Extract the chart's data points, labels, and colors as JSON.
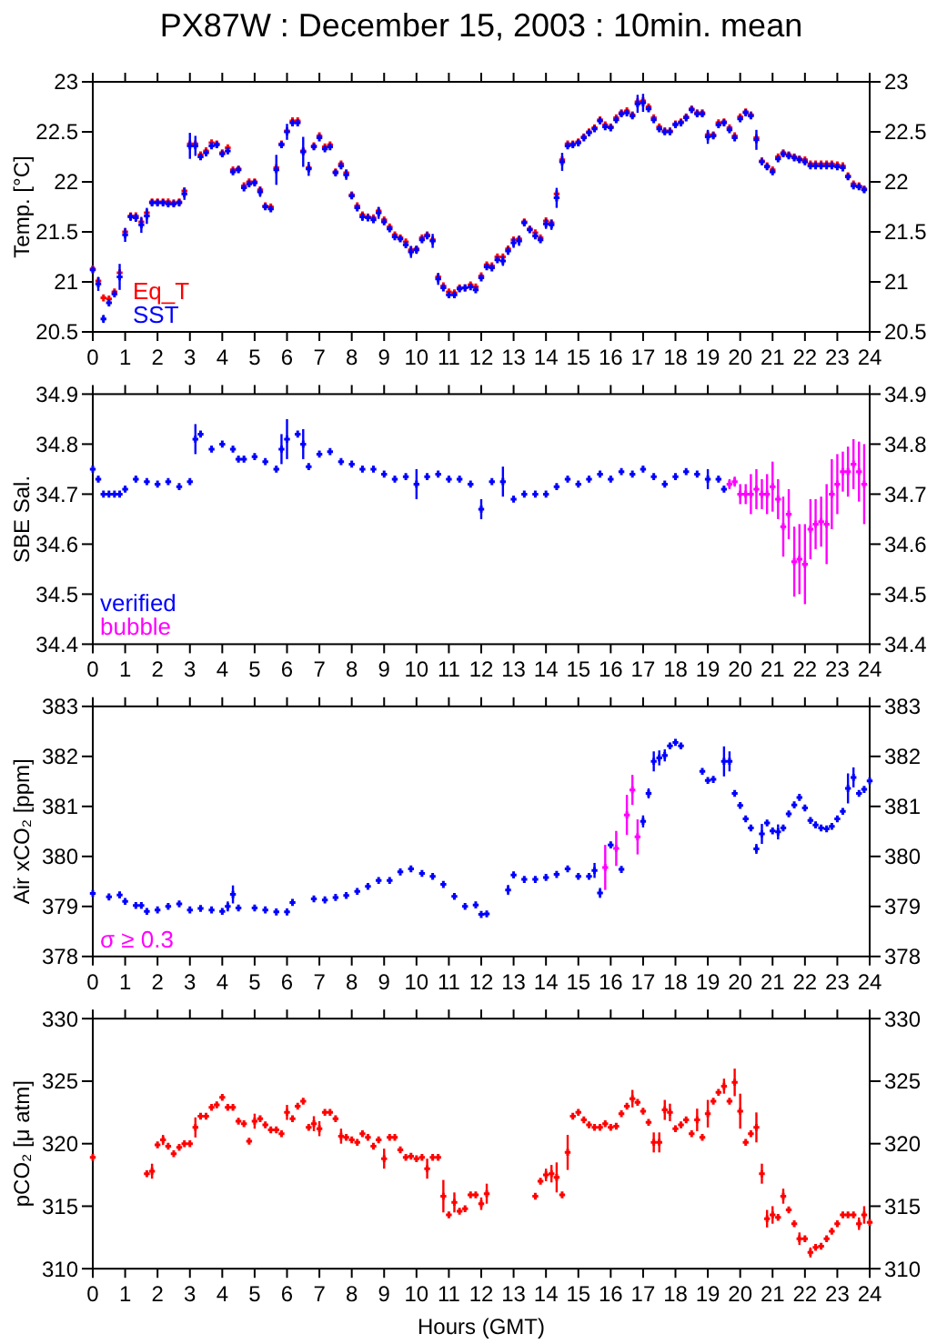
{
  "chart_data": [
    {
      "type": "scatter",
      "title": "PX87W : December 15, 2003 : 10min. mean",
      "ylabel": "Temp. [°C]",
      "xlim": [
        0,
        24
      ],
      "xticks": [
        0,
        1,
        2,
        3,
        4,
        5,
        6,
        7,
        8,
        9,
        10,
        11,
        12,
        13,
        14,
        15,
        16,
        17,
        18,
        19,
        20,
        21,
        22,
        23,
        24
      ],
      "ylim": [
        20.5,
        23
      ],
      "yticks": [
        20.5,
        21,
        21.5,
        22,
        22.5,
        23
      ],
      "y2lim": [
        20.5,
        23
      ],
      "y2ticks": [
        20.5,
        21,
        21.5,
        22,
        22.5,
        23
      ],
      "marker": "cross",
      "x": [
        0,
        0.17,
        0.33,
        0.5,
        0.67,
        0.83,
        1,
        1.17,
        1.33,
        1.5,
        1.67,
        1.83,
        2,
        2.17,
        2.33,
        2.5,
        2.67,
        2.83,
        3,
        3.17,
        3.33,
        3.5,
        3.67,
        3.83,
        4,
        4.17,
        4.33,
        4.5,
        4.67,
        4.83,
        5,
        5.17,
        5.33,
        5.5,
        5.67,
        5.83,
        6,
        6.17,
        6.33,
        6.5,
        6.67,
        6.83,
        7,
        7.17,
        7.33,
        7.5,
        7.67,
        7.83,
        8,
        8.17,
        8.33,
        8.5,
        8.67,
        8.83,
        9,
        9.17,
        9.33,
        9.5,
        9.67,
        9.83,
        10,
        10.17,
        10.33,
        10.5,
        10.67,
        10.83,
        11,
        11.17,
        11.33,
        11.5,
        11.67,
        11.83,
        12,
        12.17,
        12.33,
        12.5,
        12.67,
        12.83,
        13,
        13.17,
        13.33,
        13.5,
        13.67,
        13.83,
        14,
        14.17,
        14.33,
        14.5,
        14.67,
        14.83,
        15,
        15.17,
        15.33,
        15.5,
        15.67,
        15.83,
        16,
        16.17,
        16.33,
        16.5,
        16.67,
        16.83,
        17,
        17.17,
        17.33,
        17.5,
        17.67,
        17.83,
        18,
        18.17,
        18.33,
        18.5,
        18.67,
        18.83,
        19,
        19.17,
        19.33,
        19.5,
        19.67,
        19.83,
        20,
        20.17,
        20.33,
        20.5,
        20.67,
        20.83,
        21,
        21.17,
        21.33,
        21.5,
        21.67,
        21.83,
        22,
        22.17,
        22.33,
        22.5,
        22.67,
        22.83,
        23,
        23.17,
        23.33,
        23.5,
        23.67,
        23.83
      ],
      "series": [
        {
          "name": "Eq_T",
          "color": "#ff0000",
          "values": [
            21.13,
            21.01,
            20.84,
            20.83,
            20.9,
            21.09,
            21.5,
            21.66,
            21.66,
            21.6,
            21.69,
            21.8,
            21.8,
            21.8,
            21.8,
            21.79,
            21.8,
            21.91,
            22.38,
            22.38,
            22.27,
            22.31,
            22.39,
            22.38,
            22.29,
            22.34,
            22.12,
            22.13,
            21.96,
            22.0,
            22.0,
            21.92,
            21.76,
            21.75,
            22.14,
            22.38,
            22.51,
            22.61,
            22.61,
            22.31,
            22.14,
            22.36,
            22.46,
            22.35,
            22.37,
            22.1,
            22.18,
            22.09,
            21.87,
            21.76,
            21.67,
            21.65,
            21.64,
            21.71,
            21.62,
            21.55,
            21.47,
            21.44,
            21.4,
            21.32,
            21.33,
            21.44,
            21.47,
            21.42,
            21.05,
            20.96,
            20.9,
            20.89,
            20.94,
            20.94,
            20.97,
            20.95,
            21.06,
            21.17,
            21.16,
            21.25,
            21.25,
            21.33,
            21.42,
            21.43,
            21.6,
            21.53,
            21.49,
            21.44,
            21.61,
            21.59,
            21.88,
            22.22,
            22.38,
            22.38,
            22.4,
            22.45,
            22.5,
            22.54,
            22.62,
            22.57,
            22.55,
            22.64,
            22.69,
            22.71,
            22.67,
            22.8,
            22.81,
            22.75,
            22.64,
            22.55,
            22.51,
            22.51,
            22.58,
            22.6,
            22.65,
            22.73,
            22.69,
            22.69,
            22.47,
            22.47,
            22.59,
            22.6,
            22.54,
            22.46,
            22.65,
            22.7,
            22.67,
            22.44,
            22.21,
            22.16,
            22.12,
            22.25,
            22.29,
            22.27,
            22.25,
            22.23,
            22.22,
            22.18,
            22.18,
            22.18,
            22.18,
            22.18,
            22.17,
            22.16,
            22.06,
            21.98,
            21.96,
            21.93
          ]
        },
        {
          "name": "SST",
          "color": "#0000ff",
          "values": [
            21.12,
            20.98,
            20.63,
            20.79,
            20.88,
            21.05,
            21.47,
            21.65,
            21.64,
            21.57,
            21.66,
            21.79,
            21.79,
            21.79,
            21.78,
            21.78,
            21.79,
            21.88,
            22.36,
            22.36,
            22.25,
            22.29,
            22.36,
            22.37,
            22.28,
            22.31,
            22.1,
            22.12,
            21.94,
            21.98,
            21.99,
            21.9,
            21.75,
            21.73,
            22.12,
            22.37,
            22.5,
            22.59,
            22.59,
            22.3,
            22.13,
            22.35,
            22.44,
            22.33,
            22.35,
            22.09,
            22.16,
            22.07,
            21.86,
            21.74,
            21.65,
            21.64,
            21.62,
            21.69,
            21.6,
            21.53,
            21.45,
            21.43,
            21.37,
            21.3,
            21.32,
            21.42,
            21.46,
            21.41,
            21.03,
            20.94,
            20.87,
            20.87,
            20.93,
            20.94,
            20.95,
            20.92,
            21.04,
            21.15,
            21.14,
            21.22,
            21.21,
            21.31,
            21.39,
            21.41,
            21.59,
            21.52,
            21.46,
            21.42,
            21.58,
            21.57,
            21.84,
            22.2,
            22.36,
            22.37,
            22.39,
            22.44,
            22.49,
            22.53,
            22.61,
            22.55,
            22.54,
            22.62,
            22.68,
            22.69,
            22.66,
            22.78,
            22.79,
            22.73,
            22.62,
            22.53,
            22.5,
            22.5,
            22.57,
            22.59,
            22.64,
            22.72,
            22.68,
            22.68,
            22.45,
            22.46,
            22.57,
            22.59,
            22.52,
            22.44,
            22.63,
            22.69,
            22.66,
            22.42,
            22.2,
            22.15,
            22.1,
            22.23,
            22.28,
            22.26,
            22.24,
            22.22,
            22.2,
            22.16,
            22.16,
            22.16,
            22.16,
            22.16,
            22.15,
            22.14,
            22.05,
            21.96,
            21.95,
            21.92
          ],
          "errors": [
            null,
            0.07,
            0.04,
            null,
            null,
            0.13,
            0.07,
            0.04,
            0.04,
            0.08,
            0.08,
            null,
            null,
            null,
            null,
            null,
            null,
            0.06,
            0.13,
            0.1,
            null,
            null,
            null,
            null,
            null,
            null,
            null,
            null,
            null,
            null,
            null,
            0.05,
            null,
            null,
            0.15,
            null,
            0.08,
            null,
            null,
            0.15,
            0.07,
            null,
            null,
            null,
            null,
            null,
            null,
            0.05,
            null,
            null,
            0.04,
            null,
            null,
            0.06,
            null,
            null,
            null,
            null,
            null,
            0.06,
            0.04,
            null,
            null,
            0.07,
            0.06,
            null,
            null,
            null,
            null,
            null,
            null,
            null,
            null,
            null,
            null,
            null,
            0.05,
            0.04,
            0.05,
            0.05,
            null,
            null,
            null,
            null,
            0.05,
            0.05,
            0.1,
            0.09,
            null,
            null,
            null,
            null,
            null,
            null,
            null,
            null,
            null,
            null,
            null,
            null,
            null,
            0.09,
            0.09,
            null,
            null,
            null,
            null,
            null,
            null,
            null,
            null,
            null,
            null,
            null,
            0.07,
            null,
            null,
            null,
            null,
            null,
            null,
            null,
            null,
            0.1,
            null,
            null,
            null,
            null,
            null,
            null,
            null,
            null,
            null,
            null,
            null,
            null,
            null,
            null,
            null,
            null,
            null,
            null,
            null,
            null
          ]
        }
      ]
    },
    {
      "type": "scatter",
      "ylabel": "SBE Sal.",
      "xlim": [
        0,
        24
      ],
      "xticks": [
        0,
        1,
        2,
        3,
        4,
        5,
        6,
        7,
        8,
        9,
        10,
        11,
        12,
        13,
        14,
        15,
        16,
        17,
        18,
        19,
        20,
        21,
        22,
        23,
        24
      ],
      "ylim": [
        34.4,
        34.9
      ],
      "yticks": [
        34.4,
        34.5,
        34.6,
        34.7,
        34.8,
        34.9
      ],
      "y2lim": [
        34.4,
        34.9
      ],
      "y2ticks": [
        34.4,
        34.5,
        34.6,
        34.7,
        34.8,
        34.9
      ],
      "marker": "cross",
      "series": [
        {
          "name": "verified",
          "color": "#0000ff",
          "x": [
            0,
            0.17,
            0.33,
            0.5,
            0.67,
            0.83,
            1,
            1.33,
            1.67,
            2,
            2.33,
            2.67,
            3,
            3.17,
            3.33,
            3.67,
            4,
            4.33,
            4.5,
            4.67,
            5,
            5.33,
            5.67,
            5.83,
            6,
            6.33,
            6.5,
            6.67,
            7,
            7.33,
            7.67,
            8,
            8.33,
            8.67,
            9,
            9.33,
            9.67,
            10,
            10.33,
            10.67,
            11,
            11.33,
            11.67,
            12,
            12.33,
            12.67,
            13,
            13.33,
            13.67,
            14,
            14.33,
            14.67,
            15,
            15.33,
            15.67,
            16,
            16.33,
            16.67,
            17,
            17.33,
            17.67,
            18,
            18.33,
            18.67,
            19,
            19.33,
            19.5
          ],
          "values": [
            34.75,
            34.73,
            34.7,
            34.7,
            34.7,
            34.7,
            34.71,
            34.73,
            34.725,
            34.72,
            34.725,
            34.715,
            34.725,
            34.81,
            34.82,
            34.79,
            34.8,
            34.79,
            34.77,
            34.77,
            34.775,
            34.765,
            34.75,
            34.79,
            34.81,
            34.82,
            34.8,
            34.755,
            34.78,
            34.785,
            34.765,
            34.76,
            34.75,
            34.75,
            34.74,
            34.73,
            34.735,
            34.72,
            34.735,
            34.74,
            34.73,
            34.73,
            34.72,
            34.67,
            34.725,
            34.725,
            34.69,
            34.7,
            34.7,
            34.7,
            34.715,
            34.73,
            34.72,
            34.73,
            34.74,
            34.73,
            34.745,
            34.74,
            34.75,
            34.735,
            34.72,
            34.735,
            34.745,
            34.74,
            34.73,
            34.73,
            34.71
          ],
          "errors": [
            null,
            null,
            null,
            null,
            null,
            null,
            null,
            null,
            null,
            null,
            null,
            null,
            null,
            0.03,
            null,
            null,
            null,
            null,
            null,
            null,
            null,
            null,
            null,
            0.03,
            0.04,
            null,
            0.03,
            null,
            null,
            null,
            null,
            null,
            null,
            null,
            null,
            null,
            null,
            0.03,
            null,
            null,
            null,
            null,
            null,
            0.02,
            null,
            0.03,
            null,
            null,
            null,
            null,
            null,
            null,
            null,
            null,
            null,
            null,
            null,
            null,
            null,
            null,
            null,
            null,
            null,
            null,
            0.02,
            null,
            null
          ]
        },
        {
          "name": "bubble",
          "color": "#ff00ff",
          "x": [
            19.67,
            19.83,
            20,
            20.17,
            20.33,
            20.5,
            20.67,
            20.83,
            21,
            21.17,
            21.33,
            21.5,
            21.67,
            21.83,
            22,
            22.17,
            22.33,
            22.5,
            22.67,
            22.83,
            23,
            23.17,
            23.33,
            23.5,
            23.67,
            23.83
          ],
          "values": [
            34.72,
            34.725,
            34.7,
            34.7,
            34.7,
            34.71,
            34.7,
            34.7,
            34.715,
            34.69,
            34.635,
            34.66,
            34.565,
            34.57,
            34.56,
            34.63,
            34.64,
            34.645,
            34.64,
            34.7,
            34.72,
            34.745,
            34.745,
            34.76,
            34.745,
            34.72
          ],
          "errors": [
            0.01,
            0.01,
            0.02,
            0.02,
            0.04,
            0.04,
            0.03,
            0.04,
            0.05,
            0.04,
            0.06,
            0.05,
            0.07,
            0.07,
            0.08,
            0.06,
            0.05,
            0.05,
            0.08,
            0.07,
            0.06,
            0.04,
            0.05,
            0.05,
            0.06,
            0.08
          ]
        }
      ]
    },
    {
      "type": "scatter",
      "ylabel": "Air xCO₂ [ppm]",
      "xlim": [
        0,
        24
      ],
      "xticks": [
        0,
        1,
        2,
        3,
        4,
        5,
        6,
        7,
        8,
        9,
        10,
        11,
        12,
        13,
        14,
        15,
        16,
        17,
        18,
        19,
        20,
        21,
        22,
        23,
        24
      ],
      "ylim": [
        378,
        383
      ],
      "yticks": [
        378,
        379,
        380,
        381,
        382,
        383
      ],
      "y2lim": [
        378,
        383
      ],
      "y2ticks": [
        378,
        379,
        380,
        381,
        382,
        383
      ],
      "marker": "cross",
      "series": [
        {
          "color": "#0000ff",
          "x": [
            0,
            0.5,
            0.83,
            1,
            1.33,
            1.5,
            1.67,
            2,
            2.33,
            2.67,
            3,
            3.33,
            3.67,
            4,
            4.17,
            4.33,
            4.5,
            5,
            5.33,
            5.67,
            6,
            6.17,
            6.83,
            7.17,
            7.5,
            7.83,
            8.17,
            8.5,
            8.83,
            9.17,
            9.5,
            9.83,
            10.17,
            10.5,
            10.83,
            11.17,
            11.5,
            11.83,
            12,
            12.17,
            12.83,
            13,
            13.33,
            13.67,
            14,
            14.33,
            14.67,
            15,
            15.33,
            15.5,
            15.67,
            16,
            16.33,
            17,
            17.17,
            17.33,
            17.5,
            17.67,
            17.83,
            18,
            18.17,
            18.83,
            19,
            19.17,
            19.5,
            19.67,
            19.83,
            20,
            20.17,
            20.33,
            20.5,
            20.67,
            20.83,
            21,
            21.17,
            21.33,
            21.5,
            21.67,
            21.83,
            22,
            22.17,
            22.33,
            22.5,
            22.67,
            22.83,
            23,
            23.17,
            23.33,
            23.5,
            23.67,
            23.83,
            24
          ],
          "values": [
            379.26,
            379.19,
            379.23,
            379.1,
            379.02,
            379.02,
            378.9,
            378.93,
            379.0,
            379.05,
            378.93,
            378.96,
            378.93,
            378.9,
            379.0,
            379.24,
            378.97,
            378.97,
            378.93,
            378.89,
            378.89,
            379.08,
            379.15,
            379.13,
            379.18,
            379.22,
            379.3,
            379.4,
            379.52,
            379.52,
            379.69,
            379.75,
            379.66,
            379.6,
            379.44,
            379.2,
            379.0,
            379.03,
            378.84,
            378.85,
            379.33,
            379.63,
            379.54,
            379.54,
            379.58,
            379.64,
            379.75,
            379.6,
            379.6,
            379.72,
            379.27,
            380.23,
            379.74,
            380.7,
            381.26,
            381.9,
            381.97,
            382.02,
            382.21,
            382.28,
            382.21,
            381.7,
            381.52,
            381.54,
            381.9,
            381.9,
            381.26,
            381.02,
            380.75,
            380.57,
            380.15,
            380.45,
            380.67,
            380.51,
            380.49,
            380.57,
            380.85,
            381.03,
            381.18,
            380.97,
            380.72,
            380.63,
            380.57,
            380.55,
            380.6,
            380.75,
            380.9,
            381.36,
            381.58,
            381.26,
            381.34,
            381.51
          ],
          "errors": [
            null,
            null,
            null,
            null,
            null,
            null,
            null,
            null,
            null,
            null,
            null,
            null,
            null,
            null,
            0.1,
            0.18,
            null,
            null,
            null,
            null,
            null,
            null,
            null,
            null,
            null,
            null,
            null,
            null,
            null,
            null,
            null,
            null,
            null,
            null,
            null,
            null,
            null,
            null,
            null,
            null,
            0.1,
            null,
            null,
            null,
            null,
            null,
            null,
            null,
            null,
            0.15,
            0.1,
            null,
            null,
            0.12,
            0.1,
            0.2,
            0.15,
            0.12,
            null,
            null,
            null,
            null,
            null,
            null,
            0.3,
            0.2,
            null,
            null,
            null,
            null,
            0.1,
            0.2,
            null,
            null,
            0.15,
            null,
            null,
            null,
            null,
            null,
            null,
            null,
            null,
            null,
            null,
            null,
            null,
            0.3,
            0.2,
            null,
            null,
            null
          ]
        },
        {
          "name": "σ ≥ 0.3",
          "color": "#ff00ff",
          "x": [
            15.83,
            16.17,
            16.5,
            16.67,
            16.83
          ],
          "values": [
            379.78,
            380.16,
            380.83,
            381.33,
            380.39
          ],
          "errors": [
            0.45,
            0.35,
            0.4,
            0.3,
            0.35
          ]
        }
      ]
    },
    {
      "type": "scatter",
      "ylabel": "pCO₂ [μ atm]",
      "xlabel": "Hours (GMT)",
      "xlim": [
        0,
        24
      ],
      "xticks": [
        0,
        1,
        2,
        3,
        4,
        5,
        6,
        7,
        8,
        9,
        10,
        11,
        12,
        13,
        14,
        15,
        16,
        17,
        18,
        19,
        20,
        21,
        22,
        23,
        24
      ],
      "ylim": [
        310,
        330
      ],
      "yticks": [
        310,
        315,
        320,
        325,
        330
      ],
      "y2lim": [
        310,
        330
      ],
      "y2ticks": [
        310,
        315,
        320,
        325,
        330
      ],
      "marker": "cross",
      "series": [
        {
          "color": "#ff0000",
          "x": [
            0,
            1.67,
            1.83,
            2,
            2.17,
            2.33,
            2.5,
            2.67,
            2.83,
            3,
            3.17,
            3.33,
            3.5,
            3.67,
            3.83,
            4,
            4.17,
            4.33,
            4.5,
            4.67,
            4.83,
            5,
            5.17,
            5.33,
            5.5,
            5.67,
            5.83,
            6,
            6.17,
            6.33,
            6.5,
            6.67,
            6.83,
            7,
            7.17,
            7.33,
            7.5,
            7.67,
            7.83,
            8,
            8.17,
            8.33,
            8.5,
            8.67,
            8.83,
            9,
            9.17,
            9.33,
            9.5,
            9.67,
            9.83,
            10,
            10.17,
            10.33,
            10.5,
            10.67,
            10.83,
            11,
            11.17,
            11.33,
            11.5,
            11.67,
            11.83,
            12,
            12.17,
            13.67,
            13.83,
            14,
            14.17,
            14.33,
            14.5,
            14.67,
            14.83,
            15,
            15.17,
            15.33,
            15.5,
            15.67,
            15.83,
            16,
            16.17,
            16.33,
            16.5,
            16.67,
            16.83,
            17,
            17.17,
            17.33,
            17.5,
            17.67,
            17.83,
            18,
            18.17,
            18.33,
            18.5,
            18.67,
            18.83,
            19,
            19.17,
            19.33,
            19.5,
            19.67,
            19.83,
            20,
            20.17,
            20.33,
            20.5,
            20.67,
            20.83,
            21,
            21.17,
            21.33,
            21.5,
            21.67,
            21.83,
            22,
            22.17,
            22.33,
            22.5,
            22.67,
            22.83,
            23,
            23.17,
            23.33,
            23.5,
            23.67,
            23.83,
            24
          ],
          "values": [
            318.9,
            317.6,
            317.8,
            319.9,
            320.3,
            319.8,
            319.2,
            319.7,
            320,
            320,
            321.3,
            322.2,
            322.2,
            322.9,
            323.1,
            323.7,
            322.9,
            322.9,
            321.8,
            321.6,
            320.2,
            321.8,
            322,
            321.5,
            321.1,
            321.1,
            320.8,
            322.5,
            322,
            323,
            323.4,
            321.3,
            321.6,
            321.2,
            322.5,
            322.5,
            322,
            320.6,
            320.5,
            320.3,
            320.1,
            320.8,
            320.5,
            319.8,
            320.3,
            318.8,
            320.5,
            320.5,
            319.5,
            318.9,
            319,
            318.8,
            318.9,
            318,
            318.9,
            318.9,
            315.8,
            314.3,
            315.3,
            314.6,
            314.8,
            315.9,
            315.9,
            315.2,
            316,
            315.8,
            317,
            317.5,
            317.6,
            317.3,
            315.9,
            319.3,
            322.2,
            322.5,
            321.9,
            321.5,
            321.3,
            321.3,
            321.6,
            321.3,
            321.4,
            322.4,
            323,
            323.6,
            323.3,
            322.6,
            321.7,
            320.1,
            320.1,
            322.7,
            322.5,
            321.2,
            321.5,
            321.9,
            320.8,
            321.9,
            320.5,
            322.4,
            323.4,
            324.1,
            324.6,
            323.4,
            324.9,
            322.6,
            320.1,
            320.8,
            321.3,
            317.6,
            314,
            314.3,
            314.1,
            315.8,
            314.7,
            313.6,
            312.4,
            312.4,
            311.3,
            311.7,
            311.8,
            312.4,
            313,
            313.6,
            314.3,
            314.3,
            314.3,
            313.6,
            314.3,
            313.7
          ],
          "errors": [
            null,
            null,
            0.6,
            null,
            0.4,
            null,
            null,
            null,
            null,
            null,
            0.8,
            null,
            null,
            null,
            null,
            null,
            null,
            null,
            null,
            null,
            null,
            0.6,
            null,
            null,
            null,
            null,
            null,
            0.6,
            null,
            null,
            null,
            null,
            0.6,
            0.6,
            null,
            null,
            null,
            0.6,
            null,
            null,
            null,
            null,
            null,
            null,
            null,
            0.8,
            null,
            null,
            null,
            null,
            null,
            null,
            null,
            0.8,
            null,
            null,
            1.3,
            null,
            0.8,
            null,
            null,
            null,
            null,
            0.5,
            0.8,
            null,
            null,
            0.5,
            0.7,
            1.2,
            null,
            1.4,
            null,
            null,
            null,
            null,
            null,
            null,
            null,
            null,
            null,
            null,
            null,
            0.7,
            null,
            null,
            null,
            0.8,
            0.8,
            0.8,
            0.7,
            null,
            null,
            null,
            null,
            0.9,
            null,
            1.1,
            null,
            null,
            0.6,
            null,
            1.1,
            1.4,
            null,
            null,
            1.2,
            0.8,
            0.7,
            0.7,
            null,
            0.6,
            null,
            null,
            0.5,
            null,
            0.4,
            null,
            null,
            null,
            null,
            null,
            null,
            null,
            null,
            0.5,
            0.7,
            null
          ]
        }
      ]
    }
  ]
}
